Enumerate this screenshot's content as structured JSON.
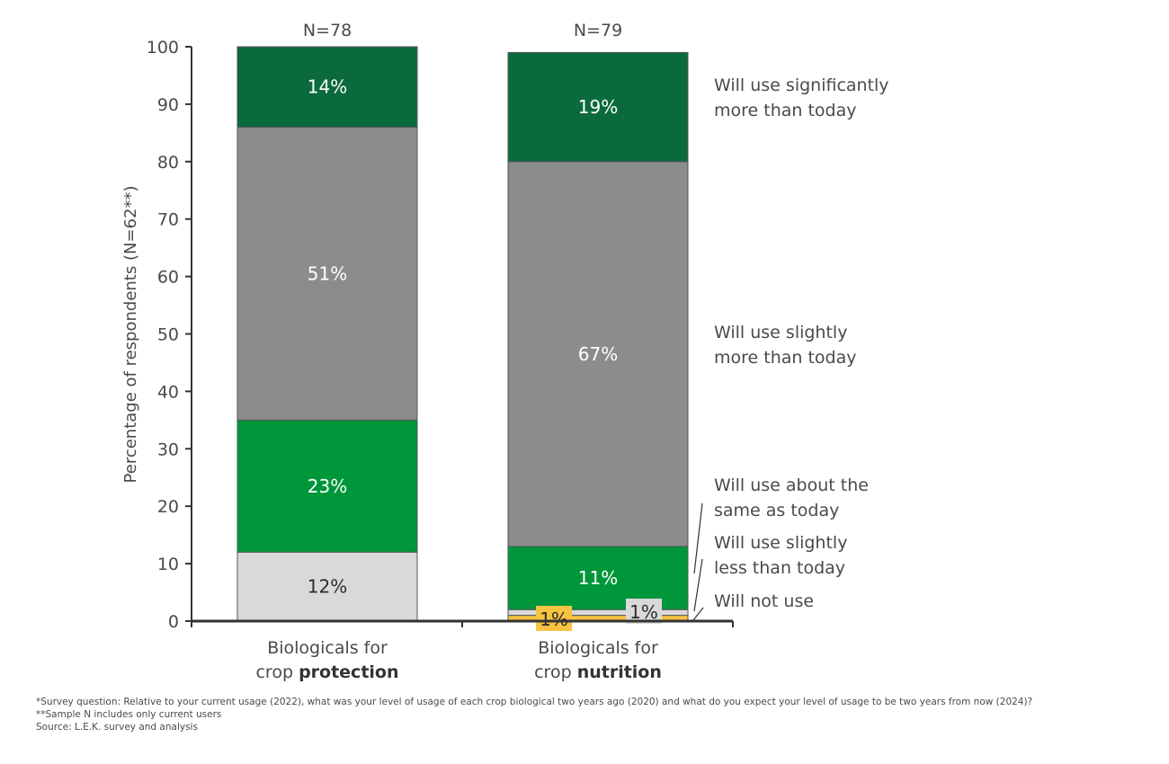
{
  "chart_data": {
    "type": "bar",
    "stacked": true,
    "ylabel": "Percentage of respondents (N=62**)",
    "ylim": [
      0,
      100
    ],
    "yticks": [
      0,
      10,
      20,
      30,
      40,
      50,
      60,
      70,
      80,
      90,
      100
    ],
    "grid": false,
    "legend_position": "right",
    "categories": [
      {
        "line1": "Biologicals for",
        "line2_prefix": "crop ",
        "line2_bold": "protection",
        "n_label": "N=78"
      },
      {
        "line1": "Biologicals for",
        "line2_prefix": "crop ",
        "line2_bold": "nutrition",
        "n_label": "N=79"
      }
    ],
    "series": [
      {
        "name": "Will not use",
        "color": "#f7c340",
        "values": [
          0,
          1
        ],
        "labels": [
          "",
          "1%"
        ]
      },
      {
        "name": "Will use slightly less than today",
        "color": "#d9d9d9",
        "values": [
          12,
          1
        ],
        "labels": [
          "12%",
          "1%"
        ]
      },
      {
        "name": "Will use about the same as today",
        "color": "#00963a",
        "values": [
          23,
          11
        ],
        "labels": [
          "23%",
          "11%"
        ]
      },
      {
        "name": "Will use slightly more than today",
        "color": "#8c8c8c",
        "values": [
          51,
          67
        ],
        "labels": [
          "51%",
          "67%"
        ]
      },
      {
        "name": "Will use significantly more than today",
        "color": "#0b6a3c",
        "values": [
          14,
          19
        ],
        "labels": [
          "14%",
          "19%"
        ]
      }
    ],
    "legend": [
      {
        "lines": [
          "Will use significantly",
          "more than today"
        ]
      },
      {
        "lines": [
          "Will use slightly",
          "more than today"
        ]
      },
      {
        "lines": [
          "Will use about the",
          "same as today"
        ]
      },
      {
        "lines": [
          "Will use slightly",
          "less than today"
        ]
      },
      {
        "lines": [
          "Will not use"
        ]
      }
    ]
  },
  "footnotes": [
    "*Survey question: Relative to your current usage (2022), what was your level of usage of each crop biological two years ago (2020) and what do you expect your level of usage to be two years from now (2024)?",
    "**Sample N includes only current users",
    "Source: L.E.K. survey and analysis"
  ]
}
